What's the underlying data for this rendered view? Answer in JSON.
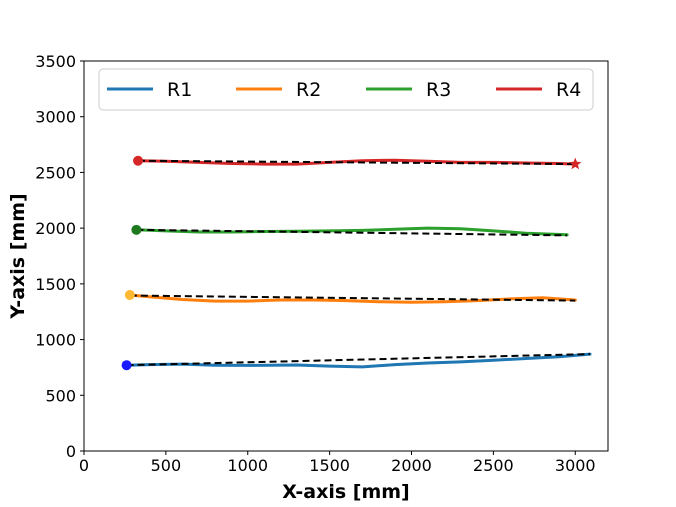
{
  "chart_data": {
    "type": "line",
    "title": "",
    "xlabel": "X-axis [mm]",
    "ylabel": "Y-axis [mm]",
    "xlim": [
      0,
      3200
    ],
    "ylim": [
      0,
      3500
    ],
    "xticks": [
      0,
      500,
      1000,
      1500,
      2000,
      2500,
      3000
    ],
    "yticks": [
      0,
      500,
      1000,
      1500,
      2000,
      2500,
      3000,
      3500
    ],
    "xtick_labels": [
      "0",
      "500",
      "1000",
      "1500",
      "2000",
      "2500",
      "3000"
    ],
    "ytick_labels": [
      "0",
      "500",
      "1000",
      "1500",
      "2000",
      "2500",
      "3000",
      "3500"
    ],
    "legend_position": "top",
    "series": [
      {
        "name": "R1",
        "color": "#1f77b4",
        "start_marker": "circle",
        "start_marker_color": "#1a1aff",
        "points": [
          [
            260,
            770
          ],
          [
            400,
            775
          ],
          [
            600,
            780
          ],
          [
            800,
            770
          ],
          [
            1000,
            768
          ],
          [
            1300,
            772
          ],
          [
            1500,
            762
          ],
          [
            1700,
            755
          ],
          [
            1900,
            775
          ],
          [
            2100,
            790
          ],
          [
            2300,
            800
          ],
          [
            2500,
            815
          ],
          [
            2700,
            830
          ],
          [
            2900,
            845
          ],
          [
            3090,
            870
          ]
        ],
        "reference_line": [
          [
            260,
            770
          ],
          [
            3090,
            870
          ]
        ]
      },
      {
        "name": "R2",
        "color": "#ff7f0e",
        "start_marker": "circle",
        "start_marker_color": "#ffb833",
        "points": [
          [
            280,
            1400
          ],
          [
            400,
            1385
          ],
          [
            600,
            1360
          ],
          [
            800,
            1345
          ],
          [
            1000,
            1345
          ],
          [
            1200,
            1355
          ],
          [
            1400,
            1355
          ],
          [
            1600,
            1350
          ],
          [
            1800,
            1340
          ],
          [
            2000,
            1335
          ],
          [
            2200,
            1340
          ],
          [
            2400,
            1350
          ],
          [
            2600,
            1365
          ],
          [
            2800,
            1375
          ],
          [
            3000,
            1355
          ]
        ],
        "reference_line": [
          [
            280,
            1395
          ],
          [
            3000,
            1350
          ]
        ]
      },
      {
        "name": "R3",
        "color": "#2ca02c",
        "start_marker": "circle",
        "start_marker_color": "#1f7a1f",
        "points": [
          [
            320,
            1985
          ],
          [
            500,
            1975
          ],
          [
            700,
            1965
          ],
          [
            900,
            1965
          ],
          [
            1100,
            1970
          ],
          [
            1300,
            1972
          ],
          [
            1500,
            1975
          ],
          [
            1700,
            1980
          ],
          [
            1900,
            1990
          ],
          [
            2100,
            2000
          ],
          [
            2300,
            1995
          ],
          [
            2500,
            1975
          ],
          [
            2700,
            1955
          ],
          [
            2950,
            1940
          ]
        ],
        "reference_line": [
          [
            320,
            1985
          ],
          [
            2950,
            1935
          ]
        ]
      },
      {
        "name": "R4",
        "color": "#d62728",
        "start_marker": "circle",
        "start_marker_color": "#d62728",
        "end_marker": "star",
        "points": [
          [
            330,
            2605
          ],
          [
            500,
            2600
          ],
          [
            700,
            2590
          ],
          [
            900,
            2580
          ],
          [
            1100,
            2575
          ],
          [
            1300,
            2575
          ],
          [
            1500,
            2590
          ],
          [
            1700,
            2605
          ],
          [
            1900,
            2610
          ],
          [
            2100,
            2600
          ],
          [
            2300,
            2590
          ],
          [
            2500,
            2590
          ],
          [
            2700,
            2585
          ],
          [
            2900,
            2580
          ],
          [
            3000,
            2575
          ]
        ],
        "reference_line": [
          [
            330,
            2605
          ],
          [
            3000,
            2575
          ]
        ]
      }
    ]
  }
}
